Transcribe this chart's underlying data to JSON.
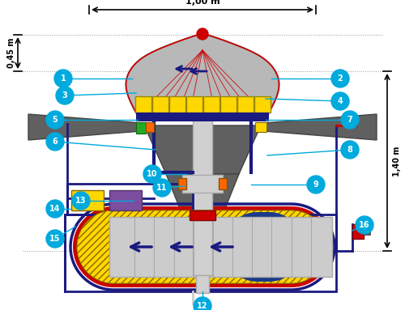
{
  "bg_color": "#ffffff",
  "dim_top_text": "1,00 m",
  "dim_left_text": "0,45 m",
  "dim_right_text": "1,40 m",
  "node_color": "#00AADD",
  "node_text_color": "#ffffff",
  "dark_blue": "#1a1a80",
  "gray_dome": "#b8b8b8",
  "dark_gray": "#606060",
  "mid_gray": "#808080",
  "yellow": "#FFD700",
  "red": "#CC0000",
  "orange": "#FF6600",
  "light_gray": "#cccccc",
  "purple": "#7B4EA0",
  "shaft_gray": "#d0d0d0",
  "battery_red": "#CC0000",
  "battery_blue": "#1a3a8a"
}
